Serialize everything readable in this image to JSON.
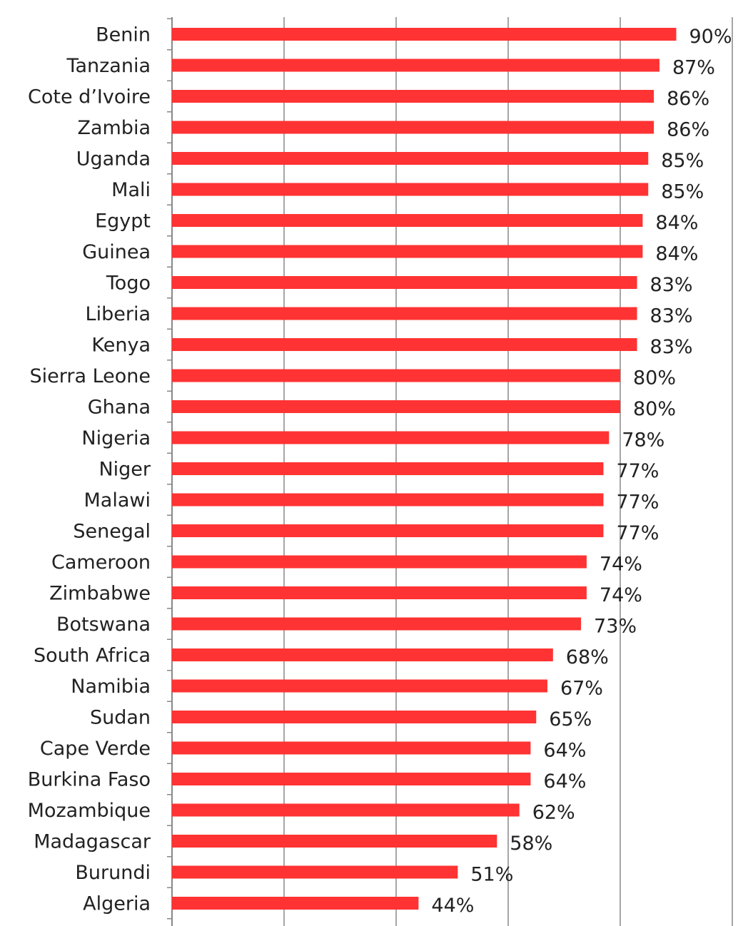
{
  "chart_data": {
    "type": "bar",
    "orientation": "horizontal",
    "title": "",
    "xlabel": "",
    "ylabel": "",
    "xlim": [
      0,
      1
    ],
    "grid": true,
    "value_format": "percent",
    "bar_color": "#ff3333",
    "gridline_color": "#888888",
    "categories": [
      "Benin",
      "Tanzania",
      "Cote d’Ivoire",
      "Zambia",
      "Uganda",
      "Mali",
      "Egypt",
      "Guinea",
      "Togo",
      "Liberia",
      "Kenya",
      "Sierra Leone",
      "Ghana",
      "Nigeria",
      "Niger",
      "Malawi",
      "Senegal",
      "Cameroon",
      "Zimbabwe",
      "Botswana",
      "South Africa",
      "Namibia",
      "Sudan",
      "Cape Verde",
      "Burkina Faso",
      "Mozambique",
      "Madagascar",
      "Burundi",
      "Algeria"
    ],
    "values": [
      0.9,
      0.87,
      0.86,
      0.86,
      0.85,
      0.85,
      0.84,
      0.84,
      0.83,
      0.83,
      0.83,
      0.8,
      0.8,
      0.78,
      0.77,
      0.77,
      0.77,
      0.74,
      0.74,
      0.73,
      0.68,
      0.67,
      0.65,
      0.64,
      0.64,
      0.62,
      0.58,
      0.51,
      0.44
    ],
    "value_labels": [
      "90%",
      "87%",
      "86%",
      "86%",
      "85%",
      "85%",
      "84%",
      "84%",
      "83%",
      "83%",
      "83%",
      "80%",
      "80%",
      "78%",
      "77%",
      "77%",
      "77%",
      "74%",
      "74%",
      "73%",
      "68%",
      "67%",
      "65%",
      "64%",
      "64%",
      "62%",
      "58%",
      "51%",
      "44%"
    ]
  }
}
